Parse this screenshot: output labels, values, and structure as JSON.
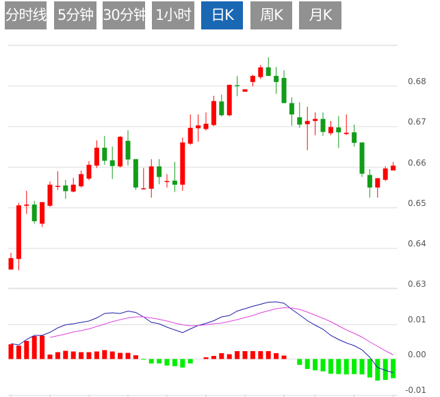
{
  "tabs": [
    {
      "label": "分时线",
      "active": false
    },
    {
      "label": "5分钟",
      "active": false
    },
    {
      "label": "30分钟",
      "active": false
    },
    {
      "label": "1小时",
      "active": false
    },
    {
      "label": "日K",
      "active": true
    },
    {
      "label": "周K",
      "active": false
    },
    {
      "label": "月K",
      "active": false
    }
  ],
  "colors": {
    "tab_bg": "#919191",
    "tab_active_bg": "#1a67b4",
    "up": "#ff0000",
    "down": "#129c1a",
    "hist_up": "#ff0000",
    "hist_down": "#00ee00",
    "dif": "#1a1aa8",
    "dea": "#e040e0"
  },
  "chart_data": [
    {
      "type": "candlestick",
      "ylim": [
        0.63,
        0.69
      ],
      "y_ticks": [
        "0.68",
        "0.67",
        "0.66",
        "0.65",
        "0.64",
        "0.63"
      ],
      "grid": true,
      "ohlc": [
        [
          0.6348,
          0.6389,
          0.6348,
          0.6376
        ],
        [
          0.6374,
          0.6512,
          0.6346,
          0.6506
        ],
        [
          0.6505,
          0.6542,
          0.6485,
          0.6508
        ],
        [
          0.6508,
          0.6517,
          0.6461,
          0.6467
        ],
        [
          0.6461,
          0.6514,
          0.6453,
          0.6514
        ],
        [
          0.6505,
          0.6565,
          0.6502,
          0.6557
        ],
        [
          0.6552,
          0.659,
          0.6544,
          0.6554
        ],
        [
          0.6555,
          0.6569,
          0.6522,
          0.6541
        ],
        [
          0.654,
          0.6574,
          0.6538,
          0.6557
        ],
        [
          0.6553,
          0.6592,
          0.655,
          0.6583
        ],
        [
          0.6572,
          0.6615,
          0.6568,
          0.6606
        ],
        [
          0.6604,
          0.6666,
          0.6598,
          0.6648
        ],
        [
          0.6648,
          0.6677,
          0.6606,
          0.6616
        ],
        [
          0.6617,
          0.6651,
          0.6571,
          0.6603
        ],
        [
          0.6602,
          0.6677,
          0.6599,
          0.6675
        ],
        [
          0.6665,
          0.6691,
          0.6604,
          0.6619
        ],
        [
          0.662,
          0.662,
          0.6544,
          0.655
        ],
        [
          0.6547,
          0.6598,
          0.6545,
          0.6548
        ],
        [
          0.6547,
          0.662,
          0.6525,
          0.6602
        ],
        [
          0.6602,
          0.662,
          0.6558,
          0.6576
        ],
        [
          0.6564,
          0.6583,
          0.655,
          0.6566
        ],
        [
          0.6567,
          0.6613,
          0.6539,
          0.6557
        ],
        [
          0.6557,
          0.6673,
          0.6542,
          0.6661
        ],
        [
          0.6658,
          0.673,
          0.6655,
          0.6697
        ],
        [
          0.6696,
          0.673,
          0.6663,
          0.6703
        ],
        [
          0.6694,
          0.6735,
          0.669,
          0.6707
        ],
        [
          0.6704,
          0.6776,
          0.6701,
          0.6763
        ],
        [
          0.6762,
          0.6779,
          0.6725,
          0.6728
        ],
        [
          0.6728,
          0.6803,
          0.6725,
          0.6803
        ],
        [
          0.6802,
          0.6825,
          0.6775,
          0.68
        ],
        [
          0.6786,
          0.6792,
          0.6786,
          0.6792
        ],
        [
          0.681,
          0.6828,
          0.6799,
          0.6825
        ],
        [
          0.6822,
          0.6852,
          0.6817,
          0.6846
        ],
        [
          0.6846,
          0.6871,
          0.6825,
          0.6825
        ],
        [
          0.6825,
          0.6847,
          0.6781,
          0.681
        ],
        [
          0.682,
          0.6839,
          0.6758,
          0.6758
        ],
        [
          0.6758,
          0.6772,
          0.6702,
          0.673
        ],
        [
          0.6723,
          0.676,
          0.6697,
          0.6705
        ],
        [
          0.6706,
          0.6749,
          0.6642,
          0.6714
        ],
        [
          0.6714,
          0.6735,
          0.6679,
          0.6719
        ],
        [
          0.6719,
          0.6735,
          0.6677,
          0.6687
        ],
        [
          0.6684,
          0.6714,
          0.6679,
          0.6699
        ],
        [
          0.6698,
          0.6726,
          0.6647,
          0.6686
        ],
        [
          0.6682,
          0.673,
          0.6679,
          0.6685
        ],
        [
          0.6686,
          0.6705,
          0.6651,
          0.666
        ],
        [
          0.6661,
          0.6661,
          0.6576,
          0.6584
        ],
        [
          0.6581,
          0.6595,
          0.6525,
          0.655
        ],
        [
          0.655,
          0.6573,
          0.6525,
          0.6573
        ],
        [
          0.6569,
          0.6602,
          0.6566,
          0.6597
        ],
        [
          0.6592,
          0.6613,
          0.6592,
          0.6604
        ]
      ]
    },
    {
      "type": "bar+line",
      "ylim": [
        -0.01,
        0.0205
      ],
      "y_ticks": [
        "0.01",
        "0.00",
        "-0.01"
      ],
      "series": [
        {
          "key": "histogram",
          "values": [
            0.0043,
            0.0039,
            0.0053,
            0.0067,
            0.0068,
            0.0013,
            0.002,
            0.0024,
            0.0022,
            0.002,
            0.002,
            0.0022,
            0.0026,
            0.0022,
            0.0018,
            0.0018,
            0.0011,
            -0.0002,
            -0.0013,
            -0.0013,
            -0.0019,
            -0.0021,
            -0.0025,
            -0.0013,
            0,
            0.0005,
            0.0009,
            0.0017,
            0.0014,
            0.0023,
            0.0023,
            0.0023,
            0.0023,
            0.0023,
            0.0017,
            0.001,
            0,
            -0.0017,
            -0.0029,
            -0.0033,
            -0.0036,
            -0.0043,
            -0.0044,
            -0.0045,
            -0.0044,
            -0.0045,
            -0.0054,
            -0.0063,
            -0.0061,
            -0.0056
          ]
        },
        {
          "key": "dif",
          "values": [
            0.0045,
            0.0041,
            0.0057,
            0.0069,
            0.0069,
            0.0078,
            0.0091,
            0.01,
            0.0103,
            0.0107,
            0.0111,
            0.012,
            0.0133,
            0.0135,
            0.0133,
            0.014,
            0.0136,
            0.0123,
            0.0107,
            0.0103,
            0.0093,
            0.0085,
            0.0077,
            0.0088,
            0.0098,
            0.0104,
            0.0112,
            0.0123,
            0.0127,
            0.014,
            0.0147,
            0.0154,
            0.016,
            0.0166,
            0.0167,
            0.0163,
            0.0145,
            0.0129,
            0.0112,
            0.0099,
            0.0087,
            0.0069,
            0.0057,
            0.0047,
            0.0039,
            0.0027,
            0.0005,
            -0.0025,
            -0.0033,
            -0.004
          ]
        },
        {
          "key": "dea",
          "values": [
            null,
            null,
            null,
            null,
            null,
            0.0063,
            0.0068,
            0.0073,
            0.0079,
            0.0083,
            0.0088,
            0.0095,
            0.0102,
            0.0109,
            0.0115,
            0.012,
            0.0123,
            0.0123,
            0.012,
            0.0116,
            0.0111,
            0.0105,
            0.01,
            0.0097,
            0.0098,
            0.01,
            0.0103,
            0.0105,
            0.011,
            0.0115,
            0.0121,
            0.0127,
            0.0135,
            0.0141,
            0.0147,
            0.015,
            0.0149,
            0.0145,
            0.0137,
            0.0128,
            0.0119,
            0.0109,
            0.0097,
            0.0085,
            0.0075,
            0.0064,
            0.005,
            0.0037,
            0.0024,
            0.0012
          ]
        }
      ]
    }
  ]
}
